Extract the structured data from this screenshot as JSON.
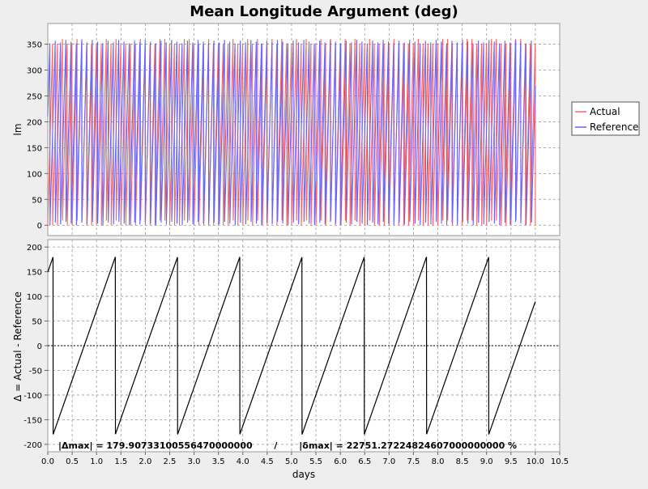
{
  "chart_data": {
    "type": "line",
    "title": "Mean Longitude Argument (deg)",
    "xlabel": "days",
    "xlim": [
      0.0,
      10.5
    ],
    "xticks": [
      "0.0",
      "0.5",
      "1.0",
      "1.5",
      "2.0",
      "2.5",
      "3.0",
      "3.5",
      "4.0",
      "4.5",
      "5.0",
      "5.5",
      "6.0",
      "6.5",
      "7.0",
      "7.5",
      "8.0",
      "8.5",
      "9.0",
      "9.5",
      "10.0",
      "10.5"
    ],
    "panels": [
      {
        "ylabel": "lm",
        "ylim": [
          -20,
          390
        ],
        "yticks": [
          "0",
          "50",
          "100",
          "150",
          "200",
          "250",
          "300",
          "350"
        ],
        "series": [
          {
            "name": "Actual",
            "color": "#ff6464",
            "period_days": 0.1,
            "phase_days": 0.0,
            "min": 0,
            "max": 360,
            "x_end": 10.0
          },
          {
            "name": "Reference",
            "color": "#6464ff",
            "period_days": 0.1085,
            "phase_days": 0.045,
            "min": 0,
            "max": 360,
            "x_end": 10.0
          }
        ]
      },
      {
        "ylabel": "Δ = Actual - Reference",
        "ylim": [
          -215,
          215
        ],
        "yticks": [
          "200",
          "150",
          "100",
          "50",
          "0",
          "-50",
          "-100",
          "-150",
          "-200"
        ],
        "series": [
          {
            "name": "Δ",
            "color": "#000000",
            "x_end": 10.0
          }
        ],
        "annotation": "|Δmax| = 179.90733100556470000000       /       |δmax| = 22751.27224824607000000000 %"
      }
    ],
    "legend": {
      "position": "right",
      "entries": [
        {
          "label": "Actual",
          "color": "#ff6464"
        },
        {
          "label": "Reference",
          "color": "#6464ff"
        }
      ]
    },
    "grid": true
  }
}
